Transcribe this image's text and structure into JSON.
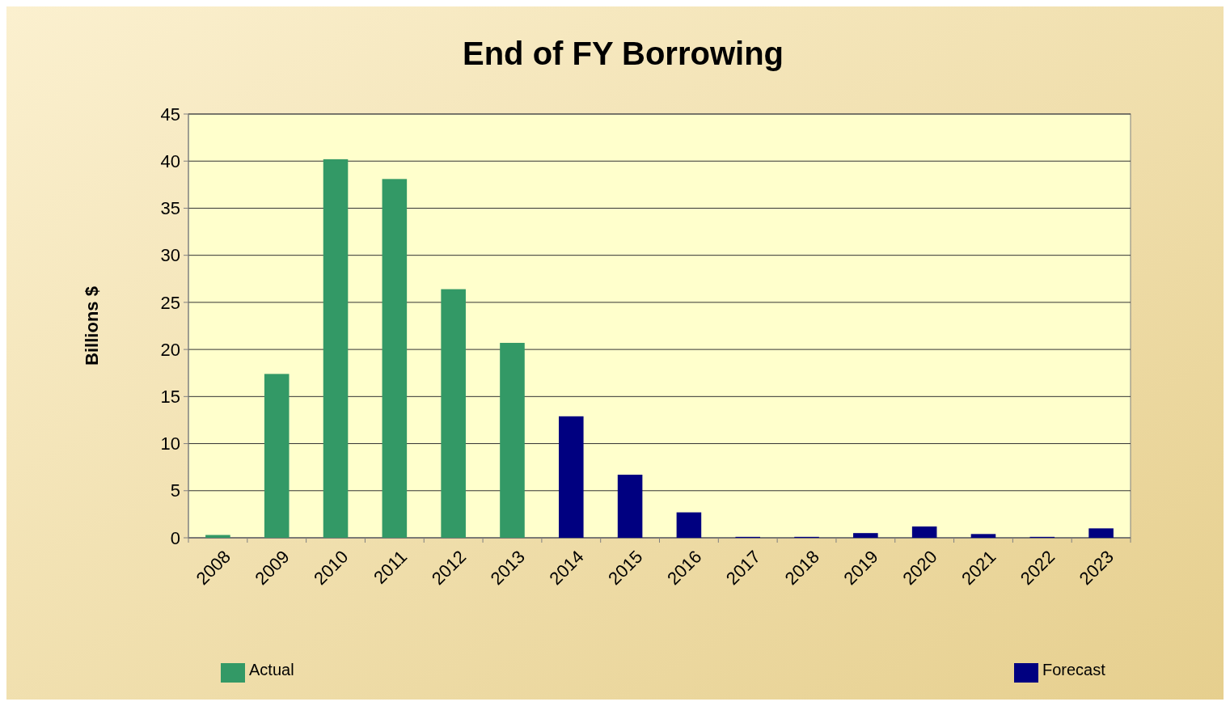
{
  "chart_data": {
    "type": "bar",
    "title": "End of FY Borrowing",
    "ylabel": "Billions $",
    "categories": [
      "2008",
      "2009",
      "2010",
      "2011",
      "2012",
      "2013",
      "2014",
      "2015",
      "2016",
      "2017",
      "2018",
      "2019",
      "2020",
      "2021",
      "2022",
      "2023"
    ],
    "series": [
      {
        "name": "Actual",
        "color": "#339966",
        "values": [
          0.3,
          17.4,
          40.2,
          38.1,
          26.4,
          20.7,
          null,
          null,
          null,
          null,
          null,
          null,
          null,
          null,
          null,
          null
        ]
      },
      {
        "name": "Forecast",
        "color": "#000080",
        "values": [
          null,
          null,
          null,
          null,
          null,
          null,
          12.9,
          6.7,
          2.7,
          0.1,
          0.1,
          0.5,
          1.2,
          0.4,
          0.1,
          1.0
        ]
      }
    ],
    "stacked": true,
    "ylim": [
      0,
      45
    ],
    "yticks": [
      0,
      5,
      10,
      15,
      20,
      25,
      30,
      35,
      40,
      45
    ],
    "grid": "y",
    "legend": "bottom"
  }
}
